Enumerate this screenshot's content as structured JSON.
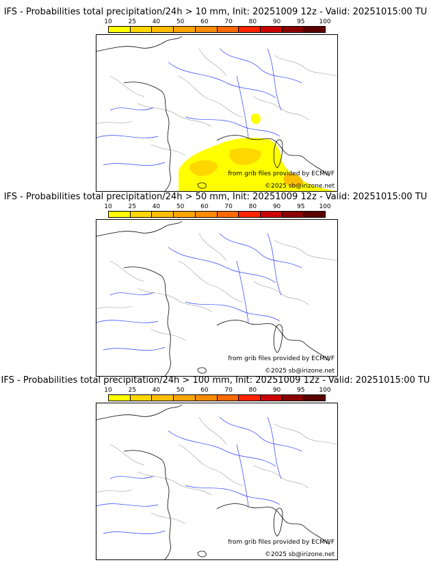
{
  "legend": {
    "ticks": [
      "10",
      "25",
      "40",
      "50",
      "60",
      "70",
      "80",
      "90",
      "95",
      "100"
    ],
    "colors": [
      "#ffff00",
      "#ffd700",
      "#ffbf00",
      "#ffa500",
      "#ff8c00",
      "#ff6a00",
      "#ff2400",
      "#cc0000",
      "#8b0000",
      "#5a0000"
    ]
  },
  "panels": [
    {
      "title": "IFS - Probabilities total precipitation/24h > 10 mm, Init: 20251009 12z - Valid: 20251015:00 TU",
      "credit_source": "from grib files provided by ECMWF",
      "credit_copyright": "©2025 sb@irizone.net",
      "has_precip": true
    },
    {
      "title": "IFS - Probabilities total precipitation/24h > 50 mm, Init: 20251009 12z - Valid: 20251015:00 TU",
      "credit_source": "from grib files provided by ECMWF",
      "credit_copyright": "©2025 sb@irizone.net",
      "has_precip": false
    },
    {
      "title": "IFS - Probabilities total precipitation/24h > 100 mm, Init: 20251009 12z - Valid: 20251015:00 TU",
      "credit_source": "from grib files provided by ECMWF",
      "credit_copyright": "©2025 sb@irizone.net",
      "has_precip": false
    }
  ]
}
